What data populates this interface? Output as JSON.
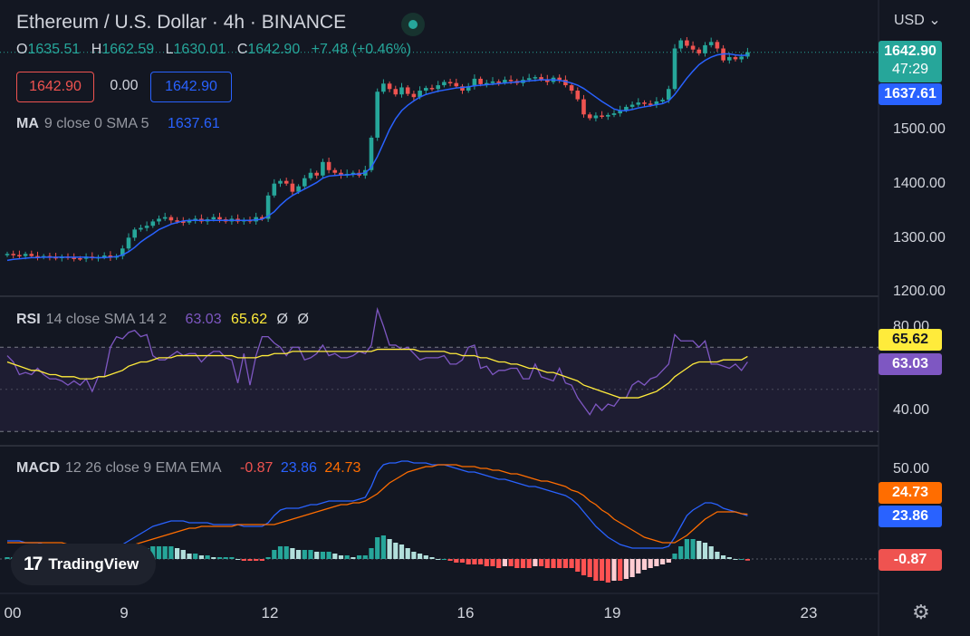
{
  "header": {
    "title": "Ethereum / U.S. Dollar · 4h · BINANCE",
    "open_key": "O",
    "open": "1635.51",
    "high_key": "H",
    "high": "1662.59",
    "low_key": "L",
    "low": "1630.01",
    "close_key": "C",
    "close": "1642.90",
    "change": "+7.48 (+0.46%)",
    "bid": "1642.90",
    "spread": "0.00",
    "ask": "1642.90",
    "currency": "USD"
  },
  "indicators": {
    "ma": {
      "name": "MA",
      "args": "9 close 0 SMA 5",
      "value": "1637.61"
    },
    "rsi": {
      "name": "RSI",
      "args": "14 close SMA 14 2",
      "value1": "63.03",
      "value2": "65.62",
      "na1": "Ø",
      "na2": "Ø"
    },
    "macd": {
      "name": "MACD",
      "args": "12 26 close 9 EMA EMA",
      "hist": "-0.87",
      "macd": "23.86",
      "signal": "24.73"
    }
  },
  "badges": {
    "price": "1642.90",
    "countdown": "47:29",
    "ma": "1637.61",
    "rsi_sma": "65.62",
    "rsi": "63.03",
    "signal": "24.73",
    "macd": "23.86",
    "hist": "-0.87"
  },
  "price_axis": [
    "1500.00",
    "1400.00",
    "1300.00",
    "1200.00"
  ],
  "rsi_axis": [
    "80.00",
    "40.00"
  ],
  "macd_axis": [
    "50.00"
  ],
  "x_axis": [
    "00",
    "9",
    "12",
    "16",
    "19",
    "23"
  ],
  "brand": {
    "logo": "17",
    "name": "TradingView"
  },
  "colors": {
    "up": "#26a69a",
    "down": "#ef5350",
    "ma": "#2962ff",
    "rsi": "#7e57c2",
    "rsi_sma": "#ffeb3b",
    "signal": "#ff6d00",
    "macd": "#2962ff",
    "bg": "#131722"
  },
  "chart_data": {
    "type": "candlestick",
    "price_ylim": [
      1200,
      1700
    ],
    "candles_close": [
      1270,
      1268,
      1266,
      1270,
      1266,
      1264,
      1266,
      1264,
      1262,
      1265,
      1263,
      1262,
      1261,
      1265,
      1262,
      1264,
      1267,
      1263,
      1266,
      1280,
      1300,
      1315,
      1318,
      1322,
      1330,
      1335,
      1338,
      1332,
      1330,
      1328,
      1332,
      1335,
      1330,
      1334,
      1338,
      1334,
      1330,
      1335,
      1330,
      1333,
      1330,
      1338,
      1335,
      1378,
      1400,
      1405,
      1400,
      1385,
      1395,
      1410,
      1420,
      1415,
      1440,
      1425,
      1420,
      1415,
      1418,
      1420,
      1415,
      1425,
      1485,
      1570,
      1585,
      1575,
      1565,
      1578,
      1566,
      1560,
      1572,
      1577,
      1575,
      1582,
      1588,
      1586,
      1580,
      1572,
      1580,
      1594,
      1584,
      1586,
      1589,
      1587,
      1592,
      1590,
      1586,
      1592,
      1595,
      1597,
      1593,
      1588,
      1596,
      1592,
      1582,
      1572,
      1556,
      1528,
      1521,
      1526,
      1524,
      1527,
      1530,
      1536,
      1542,
      1546,
      1550,
      1548,
      1546,
      1552,
      1555,
      1575,
      1650,
      1665,
      1655,
      1648,
      1641,
      1656,
      1662,
      1650,
      1628,
      1634,
      1630,
      1635,
      1643
    ],
    "ma_close": [
      1258,
      1260,
      1261,
      1262,
      1263,
      1263,
      1264,
      1264,
      1264,
      1264,
      1264,
      1264,
      1264,
      1264,
      1263,
      1263,
      1263,
      1264,
      1265,
      1268,
      1274,
      1282,
      1292,
      1300,
      1307,
      1315,
      1320,
      1325,
      1328,
      1331,
      1332,
      1332,
      1332,
      1332,
      1332,
      1332,
      1332,
      1332,
      1332,
      1332,
      1332,
      1333,
      1334,
      1340,
      1348,
      1360,
      1370,
      1378,
      1384,
      1390,
      1396,
      1402,
      1410,
      1414,
      1415,
      1416,
      1416,
      1417,
      1418,
      1420,
      1430,
      1450,
      1475,
      1500,
      1520,
      1535,
      1545,
      1553,
      1560,
      1565,
      1568,
      1571,
      1573,
      1575,
      1577,
      1578,
      1579,
      1581,
      1582,
      1583,
      1584,
      1585,
      1586,
      1587,
      1588,
      1589,
      1590,
      1591,
      1592,
      1592,
      1592,
      1591,
      1589,
      1586,
      1582,
      1576,
      1568,
      1560,
      1552,
      1545,
      1538,
      1535,
      1535,
      1537,
      1540,
      1542,
      1544,
      1546,
      1548,
      1553,
      1565,
      1580,
      1595,
      1608,
      1620,
      1628,
      1634,
      1638,
      1640,
      1640,
      1638,
      1637,
      1637.61
    ],
    "rsi_ylim": [
      20,
      90
    ],
    "rsi": [
      66,
      63,
      57,
      58,
      57,
      60,
      57,
      55,
      55,
      54,
      52,
      54,
      52,
      55,
      49,
      56,
      56,
      70,
      75,
      74,
      77,
      78,
      75,
      76,
      66,
      64,
      64,
      66,
      68,
      66,
      67,
      67,
      63,
      66,
      68,
      68,
      65,
      64,
      53,
      67,
      52,
      66,
      75,
      75,
      72,
      70,
      66,
      70,
      70,
      64,
      65,
      67,
      71,
      66,
      67,
      65,
      65,
      66,
      68,
      67,
      71,
      88,
      80,
      71,
      71,
      69,
      70,
      67,
      64,
      65,
      65,
      65,
      66,
      62,
      62,
      64,
      70,
      71,
      60,
      61,
      57,
      59,
      59,
      60,
      60,
      55,
      55,
      62,
      56,
      55,
      54,
      60,
      53,
      52,
      46,
      42,
      38,
      43,
      40,
      43,
      42,
      46,
      46,
      52,
      54,
      52,
      55,
      56,
      59,
      62,
      76,
      73,
      73,
      73,
      70,
      73,
      62,
      62,
      61,
      60,
      62,
      59,
      63.03
    ],
    "rsi_sma": [
      63,
      62,
      61,
      60,
      59,
      59,
      58,
      57,
      57,
      56,
      56,
      56,
      55,
      55,
      55,
      56,
      56,
      57,
      58,
      59,
      61,
      62,
      63,
      63,
      64,
      65,
      65,
      65,
      66,
      66,
      66,
      66,
      66,
      66,
      66,
      66,
      66,
      66,
      65,
      65,
      65,
      65,
      66,
      66,
      67,
      67,
      67,
      68,
      68,
      68,
      68,
      68,
      68,
      68,
      68,
      68,
      68,
      68,
      68,
      68,
      68,
      69,
      69,
      69,
      69,
      69,
      69,
      69,
      68,
      68,
      68,
      68,
      68,
      67,
      67,
      66,
      66,
      66,
      65,
      65,
      64,
      63,
      63,
      62,
      62,
      61,
      60,
      60,
      59,
      58,
      58,
      57,
      56,
      55,
      54,
      52,
      51,
      50,
      49,
      48,
      47,
      46,
      46,
      46,
      46,
      47,
      48,
      49,
      51,
      53,
      56,
      58,
      60,
      62,
      63,
      63,
      63,
      63,
      64,
      64,
      64,
      64,
      65.62
    ],
    "macd_ylim": [
      -20,
      55
    ],
    "macd": [
      10,
      10,
      10,
      9,
      9,
      9,
      8,
      8,
      8,
      8,
      7,
      7,
      7,
      7,
      6,
      6,
      6,
      6,
      7,
      8,
      10,
      12,
      14,
      16,
      18,
      19,
      20,
      21,
      21,
      21,
      20,
      20,
      20,
      20,
      19,
      19,
      19,
      19,
      19,
      18,
      18,
      18,
      18,
      20,
      24,
      27,
      28,
      28,
      28,
      29,
      30,
      30,
      31,
      32,
      32,
      32,
      32,
      32,
      33,
      34,
      40,
      48,
      52,
      53,
      53,
      54,
      54,
      53,
      53,
      53,
      52,
      52,
      52,
      51,
      50,
      49,
      48,
      48,
      47,
      46,
      45,
      44,
      44,
      43,
      42,
      41,
      40,
      40,
      39,
      38,
      37,
      36,
      35,
      33,
      30,
      26,
      22,
      18,
      15,
      12,
      10,
      8,
      7,
      6,
      6,
      6,
      6,
      6,
      6,
      7,
      12,
      18,
      24,
      27,
      29,
      31,
      31,
      30,
      28,
      27,
      26,
      25,
      23.86
    ],
    "signal": [
      9,
      9,
      9,
      9,
      9,
      9,
      9,
      9,
      9,
      9,
      8,
      8,
      8,
      8,
      8,
      7,
      7,
      7,
      7,
      7,
      8,
      8,
      9,
      10,
      11,
      12,
      13,
      14,
      15,
      16,
      17,
      17,
      18,
      18,
      18,
      18,
      18,
      18,
      19,
      19,
      19,
      19,
      19,
      19,
      19,
      20,
      21,
      22,
      23,
      24,
      25,
      26,
      27,
      28,
      29,
      30,
      30,
      31,
      31,
      32,
      34,
      36,
      39,
      42,
      44,
      46,
      48,
      49,
      50,
      51,
      51,
      52,
      52,
      52,
      52,
      51,
      51,
      51,
      50,
      50,
      49,
      49,
      48,
      47,
      47,
      46,
      45,
      44,
      43,
      43,
      42,
      41,
      40,
      38,
      37,
      35,
      32,
      30,
      27,
      25,
      22,
      20,
      18,
      16,
      14,
      12,
      11,
      10,
      9,
      9,
      9,
      11,
      13,
      16,
      19,
      22,
      24,
      26,
      26,
      26,
      26,
      25,
      24.73
    ],
    "hist": [
      1,
      1,
      1,
      0,
      0,
      0,
      -1,
      -1,
      -1,
      -1,
      -1,
      -1,
      -1,
      -1,
      -2,
      -1,
      -1,
      -1,
      0,
      1,
      2,
      4,
      5,
      6,
      7,
      7,
      7,
      7,
      6,
      5,
      3,
      3,
      2,
      2,
      1,
      1,
      1,
      1,
      0,
      -1,
      -1,
      -1,
      -1,
      1,
      5,
      7,
      7,
      6,
      5,
      5,
      5,
      4,
      4,
      4,
      3,
      2,
      2,
      1,
      2,
      2,
      6,
      12,
      13,
      11,
      9,
      8,
      6,
      4,
      3,
      2,
      1,
      0,
      0,
      -1,
      -2,
      -2,
      -3,
      -3,
      -3,
      -4,
      -4,
      -5,
      -4,
      -4,
      -5,
      -5,
      -5,
      -4,
      -4,
      -5,
      -5,
      -5,
      -5,
      -5,
      -7,
      -9,
      -10,
      -12,
      -12,
      -13,
      -12,
      -12,
      -11,
      -10,
      -8,
      -6,
      -5,
      -4,
      -3,
      -2,
      3,
      7,
      11,
      11,
      10,
      9,
      7,
      4,
      2,
      1,
      0,
      0,
      -0.87
    ]
  }
}
